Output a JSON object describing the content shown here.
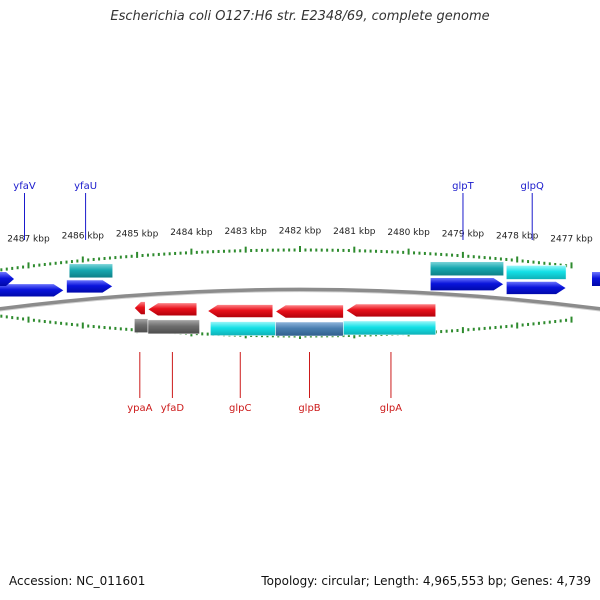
{
  "header": {
    "title": "Escherichia coli O127:H6 str. E2348/69, complete genome"
  },
  "footer": {
    "accession": "Accession: NC_011601",
    "stats": "Topology: circular; Length: 4,965,553 bp; Genes: 4,739"
  },
  "colors": {
    "backbone": "#8c8c8c",
    "tick": "#2e8b2e",
    "forward_gene": "#0a14dc",
    "reverse_gene": "#e8101a",
    "forward_label": "#1a1acc",
    "reverse_label": "#cc1a1a",
    "cyan_feature": "#14e0e6",
    "teal_feature": "#18a8b0",
    "steel_feature": "#4a7fb0",
    "gray_feature": "#6e6e6e",
    "olive_feature": "#8a9a3a"
  },
  "scale": {
    "unit": "kbp",
    "ticks": [
      {
        "kbp": 2487,
        "label": "2487 kbp"
      },
      {
        "kbp": 2486,
        "label": "2486 kbp"
      },
      {
        "kbp": 2485,
        "label": "2485 kbp"
      },
      {
        "kbp": 2484,
        "label": "2484 kbp"
      },
      {
        "kbp": 2483,
        "label": "2483 kbp"
      },
      {
        "kbp": 2482,
        "label": "2482 kbp"
      },
      {
        "kbp": 2481,
        "label": "2481 kbp"
      },
      {
        "kbp": 2480,
        "label": "2480 kbp"
      },
      {
        "kbp": 2479,
        "label": "2479 kbp"
      },
      {
        "kbp": 2478,
        "label": "2478 kbp"
      },
      {
        "kbp": 2477,
        "label": "2477 kbp"
      }
    ]
  },
  "genes": {
    "forward": [
      {
        "name": "yfaV",
        "start": 2487.65,
        "end": 2486.35
      },
      {
        "name": "yfaU",
        "start": 2486.3,
        "end": 2485.45
      },
      {
        "name": "glpT",
        "start": 2479.6,
        "end": 2478.25
      },
      {
        "name": "glpQ",
        "start": 2478.2,
        "end": 2477.1
      }
    ],
    "reverse": [
      {
        "name": "ypaA",
        "start": 2485.05,
        "end": 2484.85
      },
      {
        "name": "yfaD",
        "start": 2484.8,
        "end": 2483.9
      },
      {
        "name": "glpC",
        "start": 2483.7,
        "end": 2482.5
      },
      {
        "name": "glpB",
        "start": 2482.45,
        "end": 2481.2
      },
      {
        "name": "glpA",
        "start": 2481.15,
        "end": 2479.5
      }
    ],
    "offscreen_forward_fragments": [
      "left-edge",
      "right-edge"
    ]
  },
  "features": {
    "top": [
      {
        "name": "left-olive-feature",
        "start": 2488.0,
        "end": 2487.7,
        "color": "olive"
      },
      {
        "name": "yfaU-teal-feature",
        "start": 2486.25,
        "end": 2485.45,
        "color": "teal"
      },
      {
        "name": "glpT-teal-feature",
        "start": 2479.6,
        "end": 2478.25,
        "color": "teal"
      },
      {
        "name": "glpQ-cyan-feature",
        "start": 2478.2,
        "end": 2477.1,
        "color": "cyan"
      }
    ],
    "bottom": [
      {
        "name": "ypaA-gray-feature",
        "start": 2485.05,
        "end": 2484.8,
        "color": "gray"
      },
      {
        "name": "yfaD-gray-feature",
        "start": 2484.8,
        "end": 2483.85,
        "color": "gray"
      },
      {
        "name": "glpC-cyan-feature",
        "start": 2483.65,
        "end": 2482.45,
        "color": "cyan"
      },
      {
        "name": "glpB-steel-feature",
        "start": 2482.45,
        "end": 2481.2,
        "color": "steel"
      },
      {
        "name": "glpA-cyan-feature",
        "start": 2481.2,
        "end": 2479.5,
        "color": "cyan"
      }
    ]
  }
}
